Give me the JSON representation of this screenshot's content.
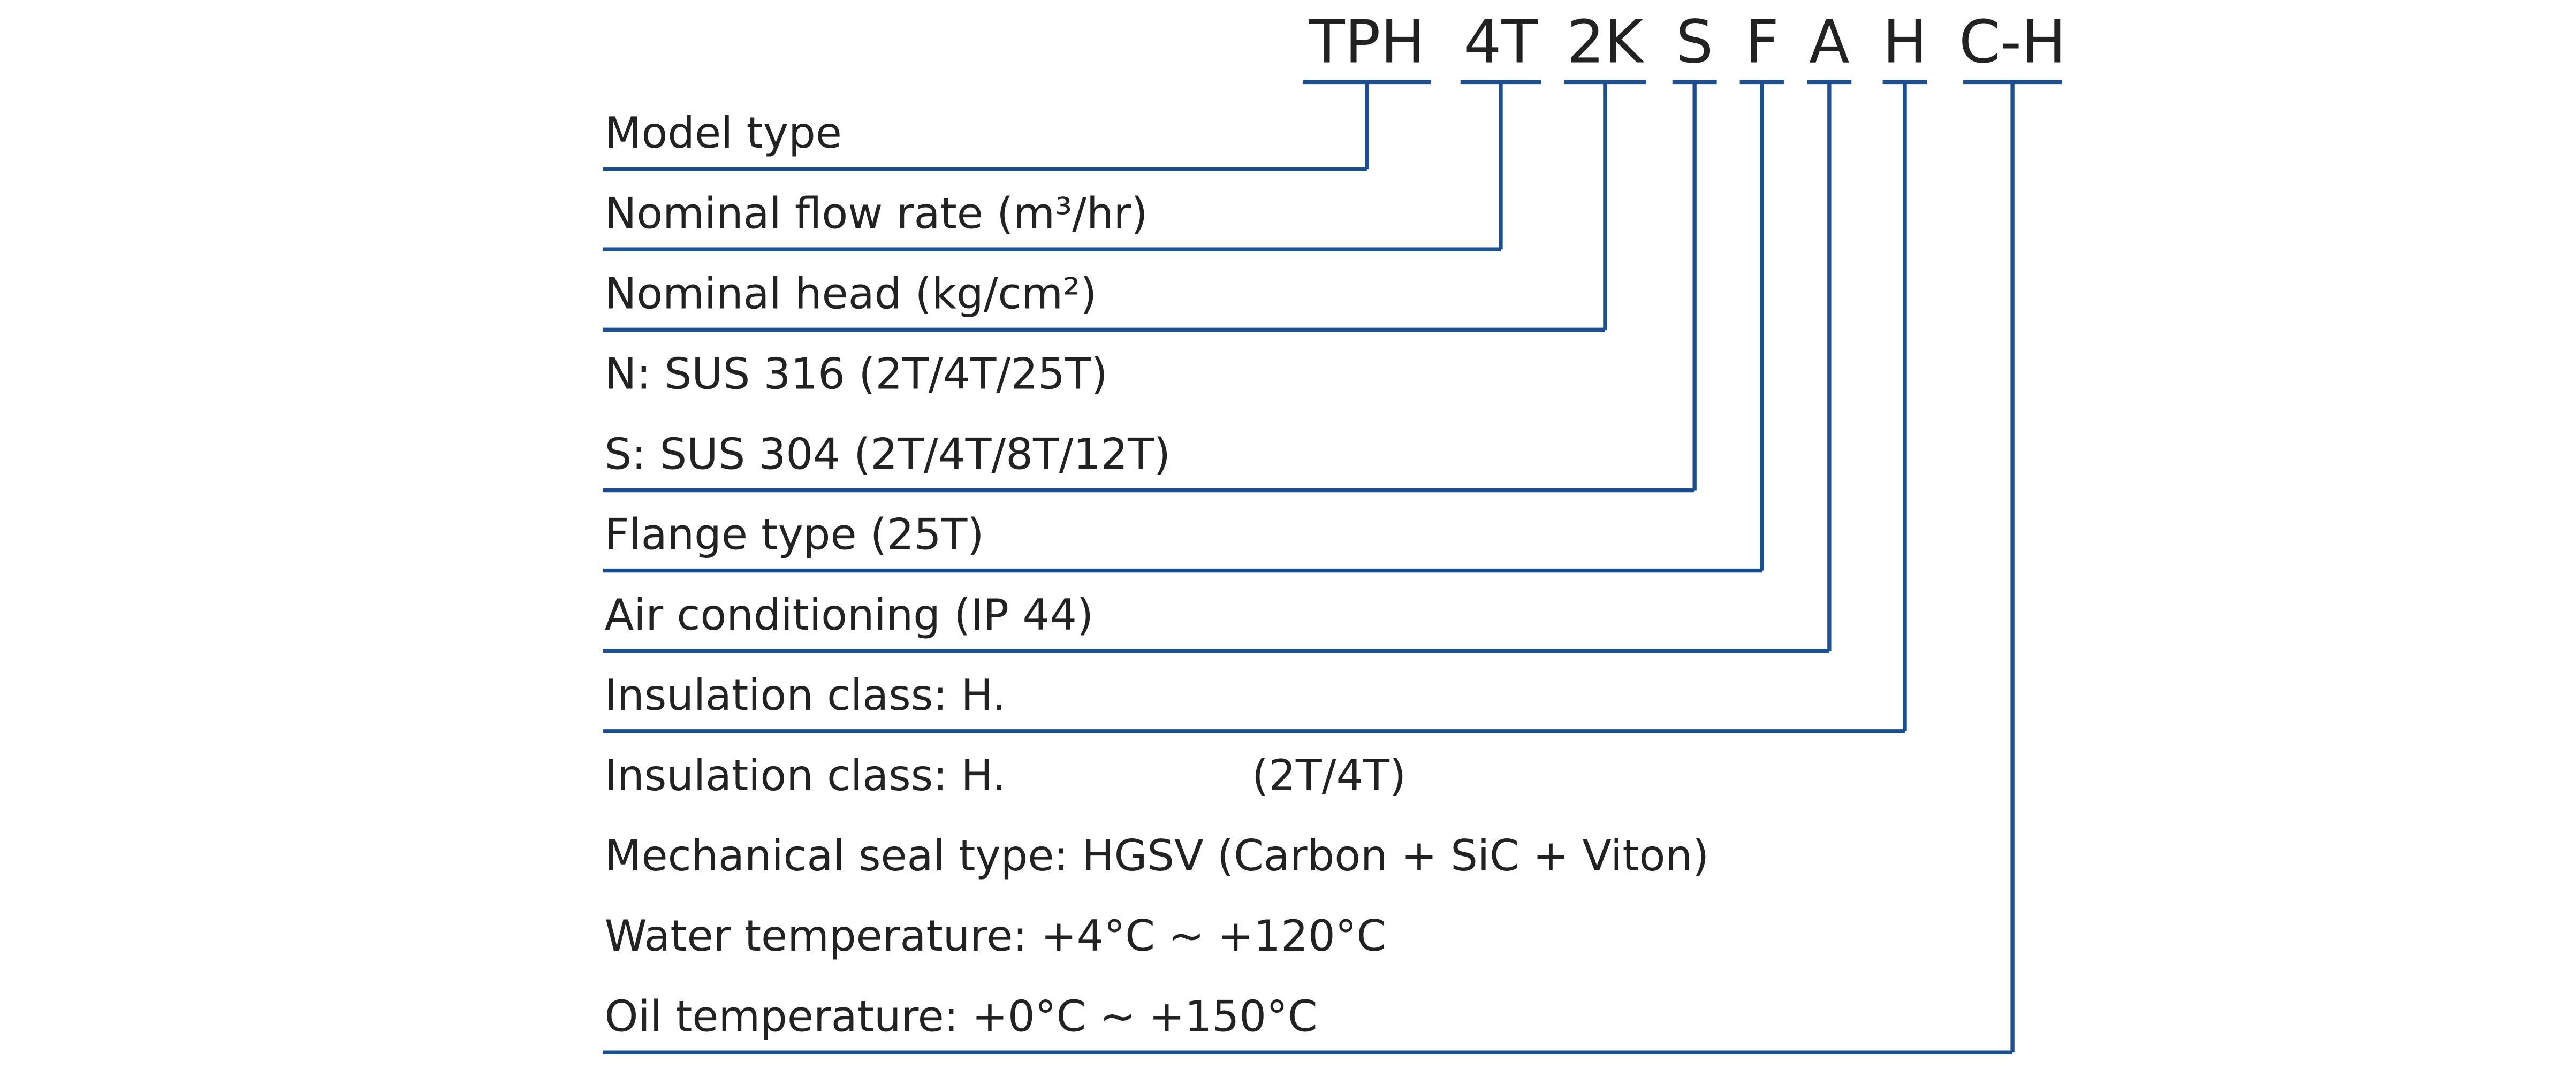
{
  "codes": [
    "TPH",
    "4T",
    "2K",
    "S",
    "F",
    "A",
    "H",
    "C-H"
  ],
  "rows": [
    {
      "text": "Model type"
    },
    {
      "text": "Nominal flow rate (m³/hr)"
    },
    {
      "text": "Nominal head (kg/cm²)"
    },
    {
      "text": "N: SUS 316 (2T/4T/25T)"
    },
    {
      "text": "S: SUS 304 (2T/4T/8T/12T)"
    },
    {
      "text": "Flange type (25T)"
    },
    {
      "text": "Air conditioning (IP 44)"
    },
    {
      "text": "Insulation class: H."
    },
    {
      "text": "Insulation class: H.",
      "note": "(2T/4T)"
    },
    {
      "text": "Mechanical seal type: HGSV (Carbon + SiC + Viton)"
    },
    {
      "text": "Water temperature: +4°C ~ +120°C"
    },
    {
      "text": "Oil temperature: +0°C ~ +150°C"
    }
  ]
}
